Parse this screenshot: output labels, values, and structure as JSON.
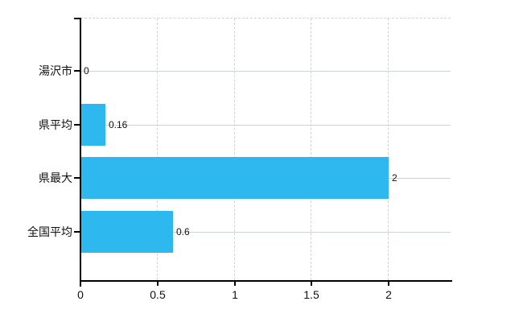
{
  "chart_data": {
    "type": "bar",
    "orientation": "horizontal",
    "title": "",
    "categories": [
      "湯沢市",
      "県平均",
      "県最大",
      "全国平均"
    ],
    "values": [
      0,
      0.16,
      2,
      0.6
    ],
    "value_labels": [
      "0",
      "0.16",
      "2",
      "0.6"
    ],
    "xticks": [
      0,
      0.5,
      1,
      1.5,
      2
    ],
    "xtick_labels": [
      "0",
      "0.5",
      "1",
      "1.5",
      "2"
    ],
    "xlim": [
      0,
      2.4
    ],
    "xlabel": "",
    "ylabel": "",
    "grid": true,
    "legend": false,
    "colors": {
      "bar": "#2db9f0",
      "axis": "#000000",
      "grid_horizontal": "#cbd5cb",
      "grid_vertical": "#d6d0d6",
      "text": "#111111"
    }
  }
}
